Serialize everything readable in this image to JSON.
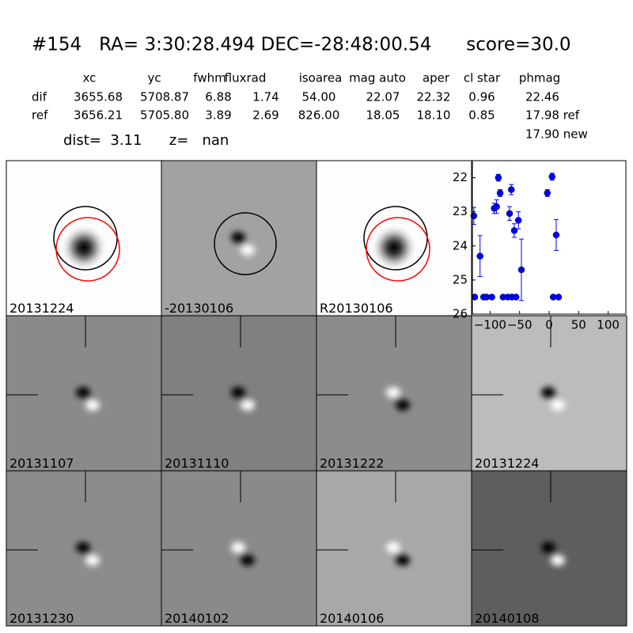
{
  "header": {
    "title": "#154   RA= 3:30:28.494 DEC=-28:48:00.54      score=30.0",
    "dist": "dist=  3.11      z=   nan"
  },
  "table": {
    "columns": [
      "xc",
      "yc",
      "fwhm",
      "fluxrad",
      "isoarea",
      "mag auto",
      "aper",
      "cl star",
      "phmag"
    ],
    "rows": [
      {
        "label": "dif",
        "cells": [
          "3655.68",
          "5708.87",
          "6.88",
          "1.74",
          "54.00",
          "22.07",
          "22.32",
          "0.96",
          "22.46"
        ]
      },
      {
        "label": "ref",
        "cells": [
          "3656.21",
          "5705.80",
          "3.89",
          "2.69",
          "826.00",
          "18.05",
          "18.10",
          "0.85",
          "17.98 ref"
        ]
      }
    ],
    "note": "17.90 new"
  },
  "panels": [
    {
      "label": "20131224"
    },
    {
      "label": "-20130106"
    },
    {
      "label": "R20130106"
    },
    {
      "label": "20131107"
    },
    {
      "label": "20131110"
    },
    {
      "label": "20131222"
    },
    {
      "label": "20131224",
      "color": "#ff0000"
    },
    {
      "label": "20131230"
    },
    {
      "label": "20140102"
    },
    {
      "label": "20140106"
    },
    {
      "label": "20140108"
    }
  ],
  "chart_data": {
    "type": "scatter",
    "x": [
      -127.5,
      -117,
      -126,
      -111,
      -106,
      -97,
      -93,
      -89,
      -86,
      -83,
      -78,
      -70,
      -67,
      -64,
      -63,
      -59,
      -56,
      -52,
      -47,
      -3,
      5,
      7,
      12,
      16
    ],
    "series": [
      {
        "color": "#0000ff",
        "values": [
          23.12,
          24.3,
          25.5,
          25.5,
          25.5,
          25.5,
          22.9,
          22.85,
          22.0,
          22.45,
          25.5,
          25.5,
          23.05,
          22.35,
          25.5,
          23.55,
          25.5,
          23.25,
          24.7,
          22.45,
          21.97,
          25.5,
          23.68,
          25.5
        ],
        "errors": [
          0.25,
          0.6,
          null,
          null,
          null,
          null,
          0.15,
          0.2,
          0.1,
          0.1,
          null,
          null,
          0.2,
          0.15,
          null,
          0.2,
          null,
          0.25,
          0.9,
          0.1,
          0.1,
          null,
          0.45,
          null
        ]
      }
    ],
    "xlim": [
      -130,
      130
    ],
    "ylim": [
      26,
      21.5
    ],
    "xticks": [
      {
        "value": -100,
        "label": "−100"
      },
      {
        "value": -50,
        "label": "−50"
      },
      0,
      50,
      100
    ],
    "yticks": [
      22,
      23,
      24,
      25,
      26
    ]
  }
}
